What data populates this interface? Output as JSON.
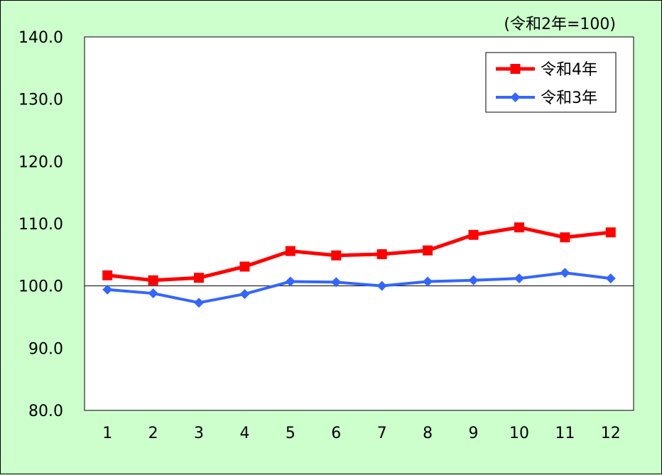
{
  "chart_data": {
    "type": "line",
    "unit_note": "(令和2年=100)",
    "categories": [
      "1",
      "2",
      "3",
      "4",
      "5",
      "6",
      "7",
      "8",
      "9",
      "10",
      "11",
      "12"
    ],
    "ylim": [
      80,
      140
    ],
    "yticks": [
      "80.0",
      "90.0",
      "100.0",
      "110.0",
      "120.0",
      "130.0",
      "140.0"
    ],
    "reference_line": 100,
    "grid": false,
    "legend_position": "top-right",
    "series": [
      {
        "name": "令和4年",
        "color": "#ff0000",
        "marker": "square",
        "values": [
          101.7,
          100.9,
          101.3,
          103.1,
          105.6,
          104.9,
          105.1,
          105.7,
          108.2,
          109.4,
          107.8,
          108.6
        ]
      },
      {
        "name": "令和3年",
        "color": "#3366ff",
        "marker": "diamond",
        "values": [
          99.4,
          98.8,
          97.3,
          98.7,
          100.7,
          100.6,
          100.0,
          100.7,
          100.9,
          101.2,
          102.1,
          101.2
        ]
      }
    ]
  }
}
